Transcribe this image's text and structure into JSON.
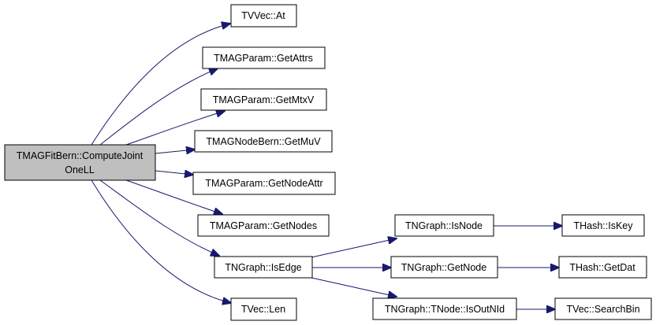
{
  "diagram": {
    "type": "call-graph",
    "edge_color": "#191970",
    "root_fill": "#bfbfbf",
    "nodes": {
      "root_line1": "TMAGFitBern::ComputeJoint",
      "root_line2": "OneLL",
      "tvvec_at": "TVVec::At",
      "getattrs": "TMAGParam::GetAttrs",
      "getmtxv": "TMAGParam::GetMtxV",
      "getmuv": "TMAGNodeBern::GetMuV",
      "getnodeattr": "TMAGParam::GetNodeAttr",
      "getnodes": "TMAGParam::GetNodes",
      "isedge": "TNGraph::IsEdge",
      "len": "TVec::Len",
      "isnode": "TNGraph::IsNode",
      "getnode": "TNGraph::GetNode",
      "isoutnid": "TNGraph::TNode::IsOutNId",
      "iskey": "THash::IsKey",
      "getdat": "THash::GetDat",
      "searchbin": "TVec::SearchBin"
    },
    "edges": [
      [
        "root",
        "tvvec_at"
      ],
      [
        "root",
        "getattrs"
      ],
      [
        "root",
        "getmtxv"
      ],
      [
        "root",
        "getmuv"
      ],
      [
        "root",
        "getnodeattr"
      ],
      [
        "root",
        "getnodes"
      ],
      [
        "root",
        "isedge"
      ],
      [
        "root",
        "len"
      ],
      [
        "isedge",
        "isnode"
      ],
      [
        "isedge",
        "getnode"
      ],
      [
        "isedge",
        "isoutnid"
      ],
      [
        "isnode",
        "iskey"
      ],
      [
        "getnode",
        "getdat"
      ],
      [
        "isoutnid",
        "searchbin"
      ]
    ]
  }
}
